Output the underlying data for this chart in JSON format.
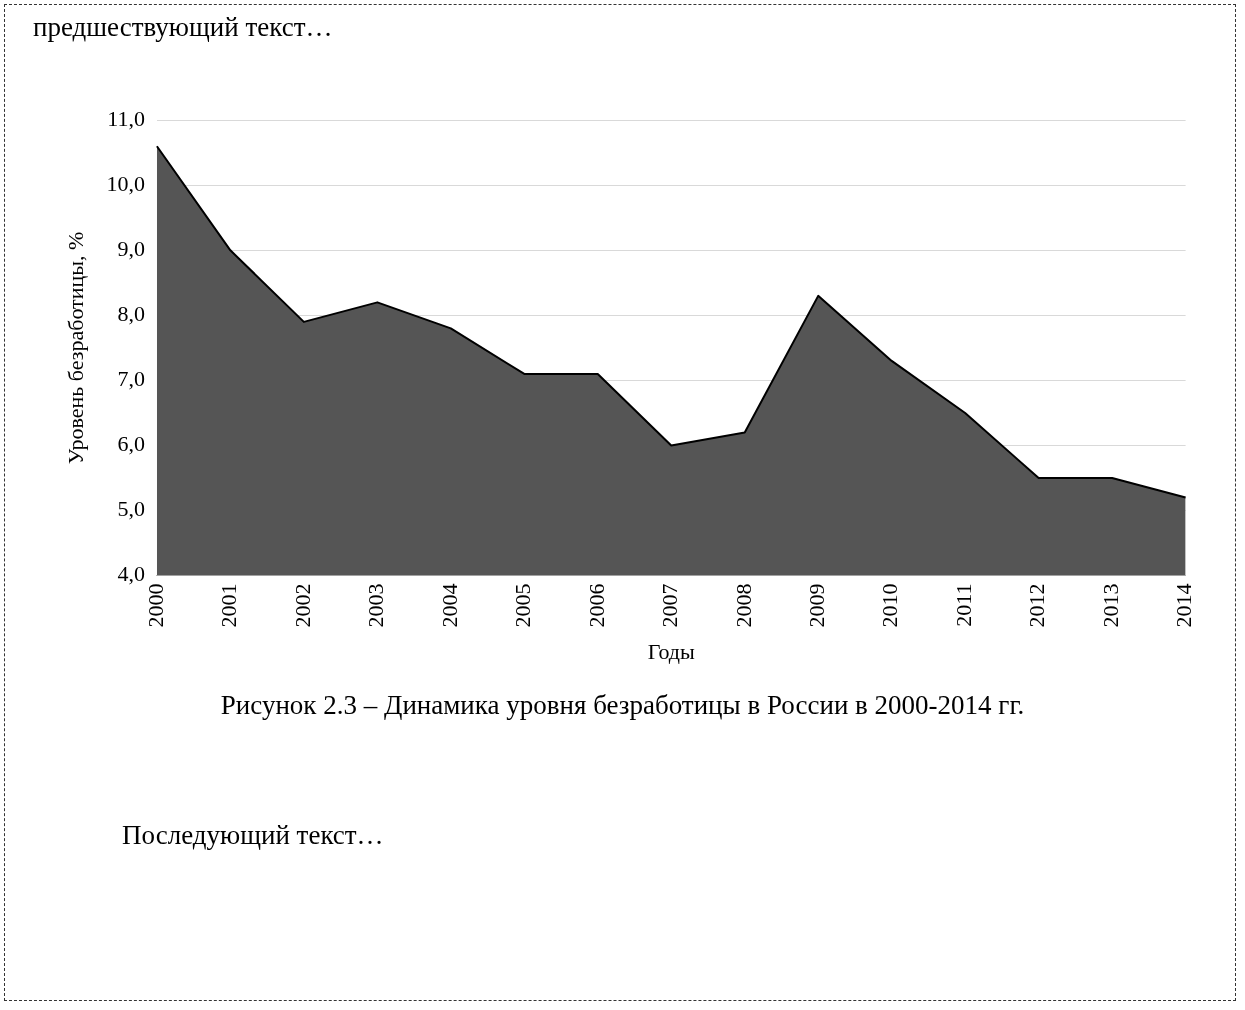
{
  "chart_data": {
    "type": "area",
    "title": "Рисунок 2.3 – Динамика уровня безработицы в России в 2000-2014 гг.",
    "xlabel": "Годы",
    "ylabel": "Уровень безработицы, %",
    "categories": [
      "2000",
      "2001",
      "2002",
      "2003",
      "2004",
      "2005",
      "2006",
      "2007",
      "2008",
      "2009",
      "2010",
      "2011",
      "2012",
      "2013",
      "2014"
    ],
    "series": [
      {
        "color": "#555555",
        "values": [
          10.6,
          9.0,
          7.9,
          8.2,
          7.8,
          7.1,
          7.1,
          6.0,
          6.2,
          8.3,
          7.3,
          6.5,
          5.5,
          5.5,
          5.2
        ]
      }
    ],
    "ylim": [
      4,
      11
    ],
    "yticks": [
      {
        "value": 4,
        "label": "4,0"
      },
      {
        "value": 5,
        "label": "5,0"
      },
      {
        "value": 6,
        "label": "6,0"
      },
      {
        "value": 7,
        "label": "7,0"
      },
      {
        "value": 8,
        "label": "8,0"
      },
      {
        "value": 9,
        "label": "9,0"
      },
      {
        "value": 10,
        "label": "10,0"
      },
      {
        "value": 11,
        "label": "11,0"
      }
    ],
    "grid": "y",
    "annotations": [
      "предшествующий текст…",
      "Последующий текст…"
    ]
  }
}
